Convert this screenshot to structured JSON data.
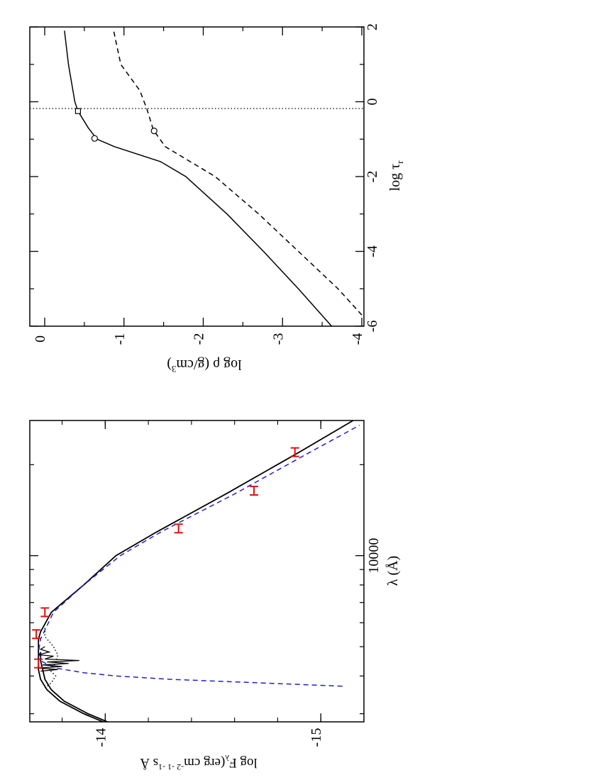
{
  "chart_data": [
    {
      "type": "line",
      "orientation": "rotated-180",
      "xlabel": "log τ",
      "xlabel_sub": "r",
      "ylabel": "log ρ (g/cm",
      "ylabel_sup": "3",
      "ylabel_tail": ")",
      "xlim": [
        -6,
        2
      ],
      "ylim": [
        -4,
        0.15
      ],
      "x_ticks": [
        {
          "value": -6,
          "label": "-6"
        },
        {
          "value": -4,
          "label": "-4"
        },
        {
          "value": -2,
          "label": "-2"
        },
        {
          "value": 0,
          "label": "0"
        },
        {
          "value": 2,
          "label": "2"
        }
      ],
      "y_ticks": [
        {
          "value": 0,
          "label": "0"
        },
        {
          "value": -1,
          "label": "-1"
        },
        {
          "value": -2,
          "label": "-2"
        },
        {
          "value": -3,
          "label": "-3"
        },
        {
          "value": -4,
          "label": "-4"
        }
      ],
      "vertical_line": {
        "x": -0.18,
        "style": "dotted"
      },
      "series": [
        {
          "style": "solid",
          "color": "#000000",
          "points": [
            [
              -6.0,
              -3.62
            ],
            [
              -5.0,
              -3.2
            ],
            [
              -4.0,
              -2.76
            ],
            [
              -3.0,
              -2.3
            ],
            [
              -2.0,
              -1.78
            ],
            [
              -1.6,
              -1.46
            ],
            [
              -1.2,
              -0.88
            ],
            [
              -1.0,
              -0.66
            ],
            [
              -0.7,
              -0.55
            ],
            [
              -0.25,
              -0.42
            ],
            [
              0.0,
              -0.38
            ],
            [
              1.0,
              -0.3
            ],
            [
              1.9,
              -0.25
            ]
          ]
        },
        {
          "style": "dashed",
          "color": "#000000",
          "points": [
            [
              -5.7,
              -4.0
            ],
            [
              -5.0,
              -3.7
            ],
            [
              -4.0,
              -3.2
            ],
            [
              -3.0,
              -2.7
            ],
            [
              -2.0,
              -2.15
            ],
            [
              -1.2,
              -1.52
            ],
            [
              -0.75,
              -1.37
            ],
            [
              -0.2,
              -1.29
            ],
            [
              0.3,
              -1.2
            ],
            [
              1.0,
              -0.96
            ],
            [
              1.9,
              -0.87
            ]
          ]
        }
      ],
      "markers": [
        {
          "x": -0.98,
          "y": -0.63,
          "shape": "circle"
        },
        {
          "x": -0.78,
          "y": -1.38,
          "shape": "circle"
        },
        {
          "x": -0.25,
          "y": -0.42,
          "shape": "square"
        }
      ]
    },
    {
      "type": "line",
      "orientation": "rotated-180",
      "xlabel": "λ (Å)",
      "ylabel": "log F",
      "ylabel_sub": "λ",
      "ylabel_tail": "(erg cm",
      "ylabel_unit_sup": "-2 -1 -1",
      "ylabel_unit_text": "s   Å",
      "xscale": "log",
      "xlim": [
        2820,
        28000
      ],
      "ylim": [
        -15.2,
        -13.65
      ],
      "x_ticks": [
        {
          "value": 10000,
          "label": "10000"
        }
      ],
      "y_ticks": [
        {
          "value": -14,
          "label": "-14"
        },
        {
          "value": -15,
          "label": "-15"
        }
      ],
      "series": [
        {
          "style": "solid",
          "color": "#000000",
          "points": [
            [
              2820,
              -13.99
            ],
            [
              3000,
              -13.9
            ],
            [
              3300,
              -13.79
            ],
            [
              3600,
              -13.73
            ],
            [
              3900,
              -13.7
            ],
            [
              4200,
              -13.69
            ],
            [
              4500,
              -13.69
            ],
            [
              4800,
              -13.69
            ],
            [
              5300,
              -13.69
            ],
            [
              5600,
              -13.7
            ],
            [
              6500,
              -13.75
            ],
            [
              8000,
              -13.9
            ],
            [
              10000,
              -14.05
            ],
            [
              12000,
              -14.24
            ],
            [
              16000,
              -14.56
            ],
            [
              22000,
              -14.9
            ],
            [
              28000,
              -15.15
            ]
          ]
        },
        {
          "style": "solid",
          "color": "#000000",
          "points": [
            [
              2820,
              -14.01
            ],
            [
              3000,
              -13.92
            ],
            [
              3300,
              -13.81
            ],
            [
              3600,
              -13.75
            ],
            [
              3900,
              -13.72
            ],
            [
              4200,
              -13.71
            ],
            [
              4500,
              -13.7
            ],
            [
              4800,
              -13.7
            ]
          ]
        },
        {
          "style": "dotted",
          "color": "#000000",
          "points": [
            [
              3650,
              -13.72
            ],
            [
              3800,
              -13.75
            ],
            [
              4000,
              -13.77
            ],
            [
              4200,
              -13.74
            ],
            [
              4400,
              -13.77
            ],
            [
              4700,
              -13.78
            ],
            [
              5000,
              -13.76
            ],
            [
              5400,
              -13.72
            ],
            [
              5800,
              -13.72
            ]
          ]
        },
        {
          "style": "dashed",
          "color": "#1f1fd0",
          "points": [
            [
              3700,
              -15.1
            ],
            [
              3800,
              -14.7
            ],
            [
              3900,
              -14.3
            ],
            [
              4000,
              -14.05
            ],
            [
              4100,
              -13.9
            ],
            [
              4250,
              -13.77
            ],
            [
              4450,
              -13.71
            ],
            [
              4800,
              -13.69
            ],
            [
              5300,
              -13.7
            ],
            [
              6500,
              -13.76
            ],
            [
              8000,
              -13.9
            ],
            [
              10000,
              -14.07
            ],
            [
              12000,
              -14.26
            ],
            [
              16000,
              -14.6
            ],
            [
              22000,
              -14.95
            ],
            [
              27000,
              -15.18
            ]
          ]
        }
      ],
      "photometry": [
        {
          "x": 4400,
          "y": -13.69
        },
        {
          "x": 5500,
          "y": -13.68
        },
        {
          "x": 6500,
          "y": -13.72
        },
        {
          "x": 12300,
          "y": -14.34
        },
        {
          "x": 16400,
          "y": -14.69
        },
        {
          "x": 22000,
          "y": -14.88
        }
      ]
    }
  ]
}
